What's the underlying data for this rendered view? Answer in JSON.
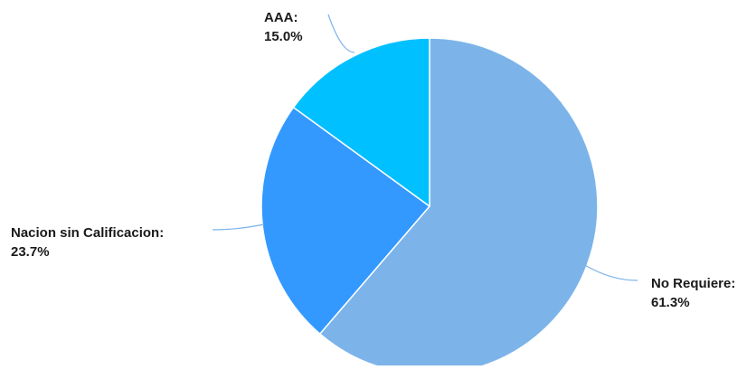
{
  "chart_data": {
    "type": "pie",
    "title": "",
    "slices": [
      {
        "label": "No Requiere",
        "value": 61.3,
        "value_text": "61.3%",
        "color": "#7cb4ea"
      },
      {
        "label": "Nacion sin Calificacion",
        "value": 23.7,
        "value_text": "23.7%",
        "color": "#3399ff"
      },
      {
        "label": "AAA",
        "value": 15.0,
        "value_text": "15.0%",
        "color": "#00c0ff"
      }
    ],
    "slice_border_color": "#ffffff",
    "leader_line_color": "#7cb4ea",
    "start_angle_deg": 0,
    "direction": "clockwise"
  }
}
